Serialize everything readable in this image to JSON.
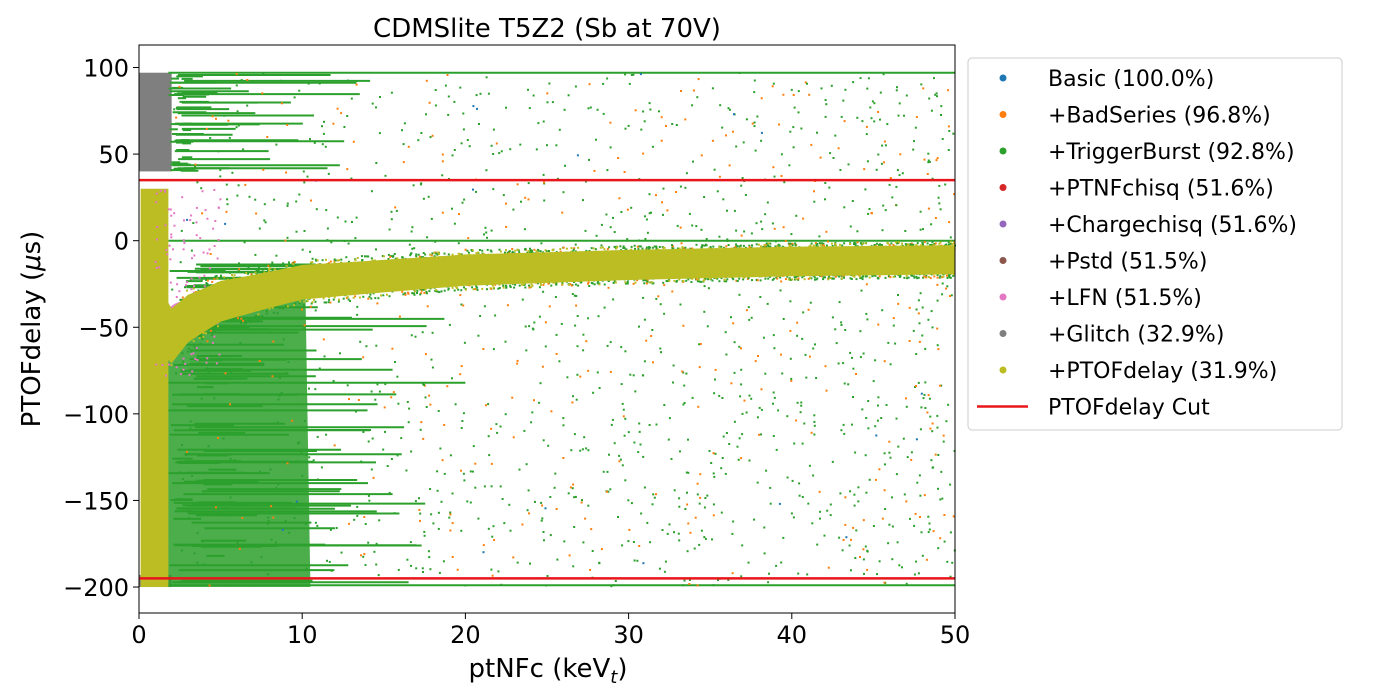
{
  "chart_data": {
    "type": "scatter",
    "title": "CDMSlite T5Z2 (Sb at 70V)",
    "xlabel_main": "ptNFc (keV",
    "xlabel_sub": "t",
    "xlabel_end": ")",
    "ylabel_main": "PTOFdelay (",
    "ylabel_mu": "μ",
    "ylabel_end": "s)",
    "xlim": [
      0,
      50
    ],
    "ylim": [
      -215,
      113
    ],
    "xticks": [
      0,
      10,
      20,
      30,
      40,
      50
    ],
    "yticks": [
      100,
      50,
      0,
      -50,
      -100,
      -150,
      -200
    ],
    "xtick_labels": [
      "0",
      "10",
      "20",
      "30",
      "40",
      "50"
    ],
    "ytick_labels": [
      "100",
      "50",
      "0",
      "−50",
      "−100",
      "−150",
      "−200"
    ],
    "grid": false,
    "legend_position": "outside-right",
    "series": [
      {
        "name": "Basic (100.0%)",
        "color": "#1f77b4",
        "marker": "point"
      },
      {
        "name": "+BadSeries (96.8%)",
        "color": "#ff7f0e",
        "marker": "point"
      },
      {
        "name": "+TriggerBurst (92.8%)",
        "color": "#2ca02c",
        "marker": "point"
      },
      {
        "name": "+PTNFchisq (51.6%)",
        "color": "#d62728",
        "marker": "point"
      },
      {
        "name": "+Chargechisq (51.6%)",
        "color": "#9467bd",
        "marker": "point"
      },
      {
        "name": "+Pstd (51.5%)",
        "color": "#8c564b",
        "marker": "point"
      },
      {
        "name": "+LFN (51.5%)",
        "color": "#e377c2",
        "marker": "point"
      },
      {
        "name": "+Glitch (32.9%)",
        "color": "#7f7f7f",
        "marker": "point"
      },
      {
        "name": "+PTOFdelay (31.9%)",
        "color": "#bcbd22",
        "marker": "point"
      },
      {
        "name": "PTOFdelay Cut",
        "color": "#e8161b",
        "marker": "line"
      }
    ],
    "cut_lines": [
      35,
      -195
    ],
    "band": [
      {
        "x": 0.5,
        "y": -60
      },
      {
        "x": 1,
        "y": -42
      },
      {
        "x": 2,
        "y": -55
      },
      {
        "x": 3,
        "y": -45
      },
      {
        "x": 5,
        "y": -35
      },
      {
        "x": 10,
        "y": -24
      },
      {
        "x": 20,
        "y": -17
      },
      {
        "x": 30,
        "y": -14
      },
      {
        "x": 40,
        "y": -12
      },
      {
        "x": 50,
        "y": -11
      }
    ]
  }
}
